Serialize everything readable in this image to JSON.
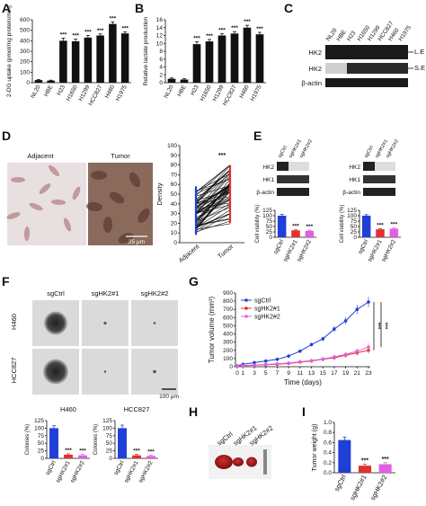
{
  "colors": {
    "black": "#111111",
    "blue": "#1f3fd6",
    "red": "#e03030",
    "pink": "#e060e0"
  },
  "panels": {
    "A": {
      "letter": "A",
      "ylabel": "2-DG uptake (pmol/mg protein/min)",
      "yticks": [
        "0",
        "100",
        "200",
        "300",
        "400",
        "500",
        "600"
      ],
      "categories": [
        "NL20",
        "HBE",
        "H23",
        "H1650",
        "H1299",
        "HCC827",
        "H460",
        "H1975"
      ],
      "sig": [
        "",
        "",
        "***",
        "***",
        "***",
        "***",
        "***",
        "***"
      ]
    },
    "B": {
      "letter": "B",
      "ylabel": "Relative lactate production",
      "yticks": [
        "0",
        "2",
        "4",
        "6",
        "8",
        "10",
        "12",
        "14",
        "16"
      ],
      "categories": [
        "NL20",
        "HBE",
        "H23",
        "H1650",
        "H1299",
        "HCC827",
        "H460",
        "H1975"
      ],
      "sig": [
        "",
        "",
        "***",
        "***",
        "***",
        "***",
        "***",
        "***"
      ]
    },
    "C": {
      "letter": "C",
      "lanes": [
        "NL20",
        "HBE",
        "H23",
        "H1650",
        "H1299",
        "HCC827",
        "H460",
        "H1975"
      ],
      "bands": [
        "HK2",
        "HK2",
        "β-actin"
      ],
      "exposures": [
        "L.E",
        "S.E"
      ]
    },
    "D": {
      "letter": "D",
      "images": [
        "Adjacent",
        "Tumor"
      ],
      "scalebar": "25 μm",
      "ylabel": "Density",
      "yticks": [
        "0",
        "10",
        "20",
        "30",
        "40",
        "50",
        "60",
        "70",
        "80",
        "90",
        "100"
      ],
      "categories": [
        "Adjacent",
        "Tumor"
      ],
      "sig": "***"
    },
    "E": {
      "letter": "E",
      "lanes": [
        "sgCtrl",
        "sgHK2#1",
        "sgHK2#2"
      ],
      "bands": [
        "HK2",
        "HK1",
        "β-actin"
      ],
      "ylabel": "Cell viability (%)",
      "yticks": [
        "0",
        "25",
        "50",
        "75",
        "100",
        "125"
      ],
      "categories": [
        "sgCtrl",
        "sgHK2#1",
        "sgHK2#2"
      ],
      "sig": [
        "",
        "***",
        "***"
      ]
    },
    "F": {
      "letter": "F",
      "columns": [
        "sgCtrl",
        "sgHK2#1",
        "sgHK2#2"
      ],
      "rows": [
        "H460",
        "HCC827"
      ],
      "scalebar": "100 μm",
      "charts": [
        {
          "title": "H460",
          "ylabel": "Colonies (%)",
          "yticks": [
            "0",
            "25",
            "50",
            "75",
            "100",
            "125"
          ],
          "categories": [
            "sgCtrl",
            "sgHK2#1",
            "sgHK2#2"
          ],
          "sig": [
            "",
            "***",
            "***"
          ]
        },
        {
          "title": "HCC827",
          "ylabel": "Colonies (%)",
          "yticks": [
            "0",
            "25",
            "50",
            "75",
            "100",
            "125"
          ],
          "categories": [
            "sgCtrl",
            "sgHK2#1",
            "sgHK2#2"
          ],
          "sig": [
            "",
            "***",
            "***"
          ]
        }
      ]
    },
    "G": {
      "letter": "G",
      "ylabel": "Tumor volume (mm³)",
      "xlabel": "Time (days)",
      "yticks": [
        "0",
        "100",
        "200",
        "300",
        "400",
        "500",
        "600",
        "700",
        "800",
        "900"
      ],
      "xticks": [
        "0",
        "1",
        "3",
        "5",
        "7",
        "9",
        "11",
        "13",
        "15",
        "17",
        "19",
        "21",
        "23"
      ],
      "legend": [
        "sgCtrl",
        "sgHK2#1",
        "sgHK2#2"
      ],
      "sig": [
        "***",
        "***"
      ]
    },
    "H": {
      "letter": "H",
      "labels": [
        "sgCtrl",
        "sgHK2#1",
        "sgHK2#2"
      ]
    },
    "I": {
      "letter": "I",
      "ylabel": "Tumor weight (g)",
      "yticks": [
        "0.0",
        "0.2",
        "0.4",
        "0.6",
        "0.8",
        "1.0"
      ],
      "categories": [
        "sgCtrl",
        "sgHK2#1",
        "sgHK2#2"
      ],
      "sig": [
        "",
        "***",
        "***"
      ]
    }
  },
  "chart_data": [
    {
      "type": "bar",
      "panel": "A",
      "categories": [
        "NL20",
        "HBE",
        "H23",
        "H1650",
        "H1299",
        "HCC827",
        "H460",
        "H1975"
      ],
      "values": [
        25,
        20,
        400,
        395,
        430,
        450,
        560,
        470
      ],
      "errors": [
        5,
        4,
        25,
        20,
        20,
        15,
        20,
        15
      ],
      "ylim": [
        0,
        600
      ],
      "ylabel": "2-DG uptake (pmol/mg protein/min)"
    },
    {
      "type": "bar",
      "panel": "B",
      "categories": [
        "NL20",
        "HBE",
        "H23",
        "H1650",
        "H1299",
        "HCC827",
        "H460",
        "H1975"
      ],
      "values": [
        1,
        0.8,
        9.8,
        10.5,
        12,
        12.5,
        14,
        12.3
      ],
      "errors": [
        0.2,
        0.2,
        0.6,
        0.5,
        0.5,
        0.5,
        0.6,
        0.5
      ],
      "ylim": [
        0,
        16
      ],
      "ylabel": "Relative lactate production"
    },
    {
      "type": "bar",
      "panel": "E-left",
      "categories": [
        "sgCtrl",
        "sgHK2#1",
        "sgHK2#2"
      ],
      "values": [
        100,
        32,
        30
      ],
      "errors": [
        6,
        3,
        3
      ],
      "ylim": [
        0,
        125
      ],
      "ylabel": "Cell viability (%)"
    },
    {
      "type": "bar",
      "panel": "E-right",
      "categories": [
        "sgCtrl",
        "sgHK2#1",
        "sgHK2#2"
      ],
      "values": [
        100,
        37,
        40
      ],
      "errors": [
        5,
        3,
        3
      ],
      "ylim": [
        0,
        125
      ],
      "ylabel": "Cell viability (%)"
    },
    {
      "type": "bar",
      "panel": "F-H460",
      "categories": [
        "sgCtrl",
        "sgHK2#1",
        "sgHK2#2"
      ],
      "values": [
        100,
        12,
        10
      ],
      "errors": [
        8,
        3,
        3
      ],
      "ylim": [
        0,
        125
      ],
      "ylabel": "Colonies (%)"
    },
    {
      "type": "bar",
      "panel": "F-HCC827",
      "categories": [
        "sgCtrl",
        "sgHK2#1",
        "sgHK2#2"
      ],
      "values": [
        100,
        10,
        8
      ],
      "errors": [
        10,
        3,
        3
      ],
      "ylim": [
        0,
        125
      ],
      "ylabel": "Colonies (%)"
    },
    {
      "type": "line",
      "panel": "G",
      "x": [
        0,
        1,
        3,
        5,
        7,
        9,
        11,
        13,
        15,
        17,
        19,
        21,
        23
      ],
      "ylim": [
        0,
        900
      ],
      "series": [
        {
          "name": "sgCtrl",
          "values": [
            10,
            30,
            50,
            70,
            90,
            130,
            190,
            270,
            340,
            460,
            560,
            700,
            790
          ]
        },
        {
          "name": "sgHK2#1",
          "values": [
            10,
            12,
            18,
            25,
            30,
            40,
            55,
            70,
            90,
            110,
            140,
            170,
            200
          ]
        },
        {
          "name": "sgHK2#2",
          "values": [
            10,
            14,
            20,
            28,
            35,
            45,
            60,
            75,
            95,
            120,
            150,
            190,
            240
          ]
        }
      ]
    },
    {
      "type": "bar",
      "panel": "I",
      "categories": [
        "sgCtrl",
        "sgHK2#1",
        "sgHK2#2"
      ],
      "values": [
        0.65,
        0.14,
        0.17
      ],
      "errors": [
        0.06,
        0.03,
        0.03
      ],
      "ylim": [
        0,
        1.0
      ],
      "ylabel": "Tumor weight (g)"
    }
  ]
}
